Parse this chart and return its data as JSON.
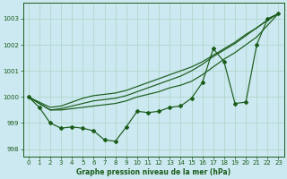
{
  "title": "Graphe pression niveau de la mer (hPa)",
  "bg_color": "#cce8f0",
  "line_color": "#1a5c1a",
  "grid_color": "#b0d8cc",
  "ylim": [
    997.7,
    1003.6
  ],
  "xlim": [
    -0.5,
    23.5
  ],
  "yticks": [
    998,
    999,
    1000,
    1001,
    1002,
    1003
  ],
  "xticks": [
    0,
    1,
    2,
    3,
    4,
    5,
    6,
    7,
    8,
    9,
    10,
    11,
    12,
    13,
    14,
    15,
    16,
    17,
    18,
    19,
    20,
    21,
    22,
    23
  ],
  "series_main": [
    1000.0,
    999.6,
    999.0,
    998.8,
    998.85,
    998.8,
    998.7,
    998.35,
    998.3,
    998.85,
    999.45,
    999.4,
    999.45,
    999.6,
    999.65,
    999.95,
    1000.55,
    1001.85,
    1001.35,
    999.75,
    999.8,
    1002.0,
    1003.0,
    1003.2
  ],
  "series_smooth": [
    [
      1000.0,
      999.75,
      999.5,
      999.5,
      999.55,
      999.6,
      999.65,
      999.7,
      999.75,
      999.85,
      1000.0,
      1000.1,
      1000.2,
      1000.35,
      1000.45,
      1000.6,
      1000.85,
      1001.15,
      1001.45,
      1001.7,
      1002.0,
      1002.3,
      1002.75,
      1003.2
    ],
    [
      1000.0,
      999.75,
      999.5,
      999.55,
      999.65,
      999.75,
      999.85,
      999.9,
      999.95,
      1000.05,
      1000.2,
      1000.35,
      1000.5,
      1000.65,
      1000.8,
      1001.0,
      1001.25,
      1001.55,
      1001.8,
      1002.05,
      1002.35,
      1002.65,
      1002.95,
      1003.2
    ],
    [
      1000.0,
      999.8,
      999.6,
      999.65,
      999.8,
      999.95,
      1000.05,
      1000.1,
      1000.15,
      1000.25,
      1000.4,
      1000.55,
      1000.7,
      1000.85,
      1001.0,
      1001.15,
      1001.35,
      1001.6,
      1001.85,
      1002.1,
      1002.4,
      1002.65,
      1002.95,
      1003.2
    ]
  ]
}
